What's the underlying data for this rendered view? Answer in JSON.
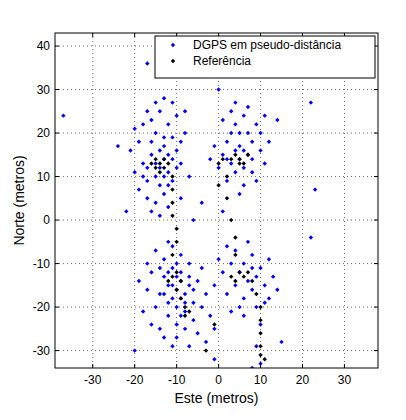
{
  "chart_data": {
    "type": "scatter",
    "x_label": "Este (metros)",
    "y_label": "Norte (metros)",
    "xlim": [
      -39,
      38
    ],
    "ylim": [
      -34,
      43
    ],
    "xticks": [
      -30,
      -20,
      -10,
      0,
      10,
      20,
      30
    ],
    "yticks": [
      -30,
      -20,
      -10,
      0,
      10,
      20,
      30,
      40
    ],
    "grid": true,
    "legend": "top-right",
    "series": [
      {
        "name": "DGPS em pseudo-distância",
        "color": "#0000ff",
        "marker": "diamond",
        "x": [
          -14,
          -15,
          -13,
          -16,
          -12,
          -17,
          -14,
          -18,
          -13,
          -15,
          -16,
          -12,
          -14,
          -11,
          -10,
          -19,
          -20,
          -17,
          -15,
          -13,
          -11,
          -9,
          -8,
          -10,
          -13,
          -15,
          -18,
          -21,
          -19,
          -16,
          -14,
          -12,
          -9,
          -7,
          -8,
          -11,
          -17,
          -20,
          -13,
          -16,
          -12,
          -15,
          -14,
          -18,
          -10,
          -12,
          -17,
          -13,
          -11,
          -9,
          5,
          4,
          6,
          3,
          7,
          2,
          8,
          5,
          4,
          6,
          3,
          9,
          10,
          8,
          1,
          0,
          -1,
          2,
          6,
          9,
          11,
          10,
          7,
          4,
          1,
          3,
          7,
          5,
          6,
          4,
          8,
          2,
          12,
          5,
          -2,
          11,
          -10,
          -9,
          -11,
          -8,
          -12,
          -10,
          -9,
          -13,
          -7,
          -11,
          -14,
          -8,
          -12,
          -10,
          -6,
          -15,
          -13,
          -9,
          -11,
          -16,
          -17,
          -18,
          -14,
          -10,
          -6,
          -4,
          -5,
          -7,
          -3,
          -2,
          -12,
          -15,
          -19,
          -8,
          -11,
          -5,
          -1,
          -16,
          -9,
          -10,
          -12,
          -7,
          -11,
          -13,
          -8,
          -9,
          -14,
          -6,
          -10,
          -12,
          -4,
          -3,
          -7,
          -17,
          -13,
          -1,
          7,
          5,
          8,
          6,
          9,
          4,
          10,
          3,
          8,
          11,
          12,
          9,
          6,
          2,
          1,
          4,
          7,
          10,
          13,
          12,
          5,
          3,
          8,
          6,
          11,
          14,
          2,
          0,
          -37,
          -17,
          22,
          23,
          22,
          8,
          10,
          -24,
          -22,
          15,
          -20,
          0,
          14,
          -1,
          9,
          -4,
          1,
          -6
        ],
        "values": [
          12,
          10,
          14,
          15,
          11,
          9,
          8,
          13,
          17,
          20,
          23,
          22,
          25,
          19,
          16,
          18,
          11,
          5,
          4,
          6,
          9,
          13,
          20,
          24,
          28,
          27,
          22,
          16,
          7,
          2,
          1,
          3,
          5,
          10,
          25,
          27,
          25,
          21,
          19,
          18,
          15,
          13,
          16,
          10,
          12,
          8,
          12,
          10,
          14,
          18,
          14,
          16,
          12,
          13,
          15,
          18,
          18,
          20,
          22,
          24,
          25,
          22,
          20,
          11,
          15,
          12,
          17,
          9,
          8,
          9,
          13,
          16,
          26,
          27,
          23,
          20,
          20,
          17,
          16,
          11,
          14,
          14,
          18,
          6,
          14,
          24,
          -16,
          -14,
          -18,
          -17,
          -15,
          -20,
          -12,
          -13,
          -15,
          -11,
          -17,
          -21,
          -22,
          -24,
          -19,
          -20,
          -9,
          -8,
          -6,
          -12,
          -16,
          -21,
          -25,
          -27,
          -23,
          -20,
          -14,
          -10,
          -17,
          -22,
          -5,
          -7,
          -14,
          -25,
          -29,
          -26,
          -25,
          -24,
          -18,
          -13,
          -19,
          -13,
          -15,
          -17,
          -19,
          -22,
          -11,
          -16,
          -10,
          -12,
          -11,
          -28,
          -29,
          -10,
          -27,
          -15,
          -14,
          -12,
          -16,
          -18,
          -13,
          -15,
          -11,
          -10,
          -8,
          -15,
          -18,
          -20,
          -22,
          -17,
          -12,
          -7,
          -5,
          -24,
          -13,
          -9,
          -20,
          -21,
          -11,
          -10,
          -19,
          -16,
          -6,
          -9,
          24,
          36,
          27,
          7,
          -4,
          -34,
          -33,
          17,
          2,
          -28,
          -30,
          30,
          23,
          -32,
          -29,
          4,
          2,
          0
        ]
      },
      {
        "name": "Referência",
        "color": "#000000",
        "marker": "diamond",
        "x": [
          -14,
          -15,
          -13,
          -14,
          -12,
          -15,
          -13,
          -16,
          -11,
          -11,
          -11,
          -11,
          -10,
          -10,
          -11,
          -10,
          -9,
          -10,
          -9,
          -8,
          -8,
          -7,
          -12,
          -11,
          5,
          4,
          6,
          3,
          7,
          5,
          0,
          1,
          2,
          0,
          2,
          3,
          4,
          4,
          5,
          6,
          4,
          7,
          3,
          8,
          9,
          10,
          10,
          10,
          10,
          10,
          11,
          -3,
          -1
        ],
        "values": [
          13,
          12,
          14,
          11,
          13,
          14,
          12,
          13,
          10,
          7,
          4,
          1,
          -2,
          -5,
          -8,
          -12,
          -14,
          -16,
          -18,
          -20,
          -22,
          -21,
          -14,
          -13,
          14,
          15,
          13,
          14,
          15,
          13,
          13,
          14,
          10,
          8,
          5,
          0,
          -4,
          -8,
          -12,
          -13,
          -14,
          -12,
          -13,
          -14,
          -17,
          -20,
          -23,
          -26,
          -29,
          -31,
          -32,
          -30,
          -24
        ]
      }
    ]
  }
}
